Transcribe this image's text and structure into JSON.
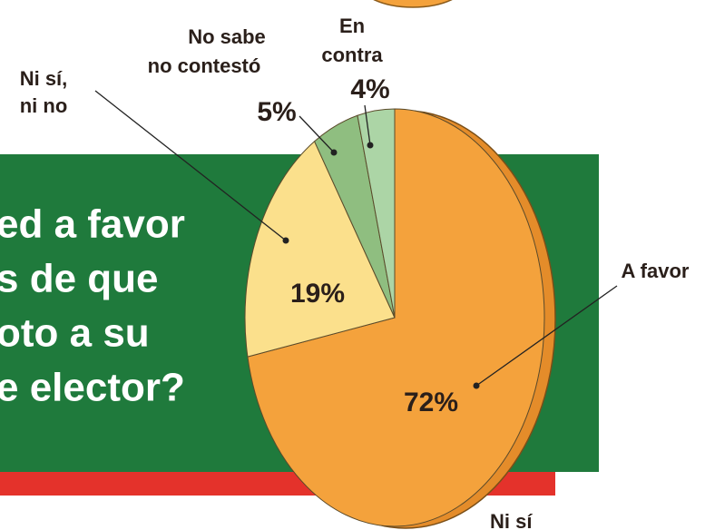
{
  "chart_data": {
    "type": "pie",
    "categories": [
      [
        "A favor"
      ],
      [
        "Ni sí,",
        "ni no"
      ],
      [
        "No sabe",
        "no contestó"
      ],
      [
        "En",
        "contra"
      ]
    ],
    "values": [
      72,
      19,
      5,
      4
    ],
    "value_labels": [
      "72%",
      "19%",
      "5%",
      "4%"
    ],
    "colors": [
      "#f4a23c",
      "#fbe08c",
      "#8fbe80",
      "#acd5a6"
    ],
    "question_lines": [
      "ed a favor",
      "s de que",
      "oto a su",
      "e elector?"
    ],
    "footer_fragment": "Ni sí"
  }
}
